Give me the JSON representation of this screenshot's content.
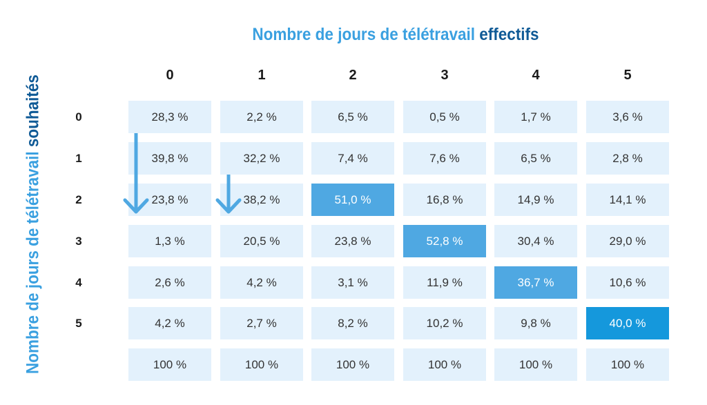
{
  "title_top": {
    "part1": "Nombre de jours de télétravail",
    "part2": "effectifs"
  },
  "title_side": {
    "part1": "Nombre de jours de télétravail",
    "part2": "souhaités"
  },
  "colors": {
    "light_blue": "#3aa0e0",
    "dark_blue": "#0f5a96",
    "cell_bg": "#e3f1fc",
    "highlight": "#4fa8e2",
    "highlight_strong": "#1598dc",
    "arrow": "#4fa8e2"
  },
  "chart_data": {
    "type": "table",
    "xlabel": "Nombre de jours de télétravail effectifs",
    "ylabel": "Nombre de jours de télétravail souhaités",
    "columns": [
      "0",
      "1",
      "2",
      "3",
      "4",
      "5"
    ],
    "rows": [
      {
        "label": "0",
        "values": [
          "28,3 %",
          "2,2 %",
          "6,5 %",
          "0,5 %",
          "1,7 %",
          "3,6 %"
        ]
      },
      {
        "label": "1",
        "values": [
          "39,8 %",
          "32,2 %",
          "7,4 %",
          "7,6 %",
          "6,5 %",
          "2,8 %"
        ]
      },
      {
        "label": "2",
        "values": [
          "23,8 %",
          "38,2 %",
          "51,0 %",
          "16,8 %",
          "14,9 %",
          "14,1 %"
        ]
      },
      {
        "label": "3",
        "values": [
          "1,3 %",
          "20,5 %",
          "23,8 %",
          "52,8 %",
          "30,4 %",
          "29,0 %"
        ]
      },
      {
        "label": "4",
        "values": [
          "2,6 %",
          "4,2 %",
          "3,1 %",
          "11,9 %",
          "36,7 %",
          "10,6 %"
        ]
      },
      {
        "label": "5",
        "values": [
          "4,2 %",
          "2,7 %",
          "8,2 %",
          "10,2 %",
          "9,8 %",
          "40,0 %"
        ]
      },
      {
        "label": "",
        "values": [
          "100 %",
          "100 %",
          "100 %",
          "100 %",
          "100 %",
          "100 %"
        ]
      }
    ],
    "highlighted_cells": [
      {
        "row": 2,
        "col": 2,
        "style": "highlight"
      },
      {
        "row": 3,
        "col": 3,
        "style": "highlight"
      },
      {
        "row": 4,
        "col": 4,
        "style": "highlight"
      },
      {
        "row": 5,
        "col": 5,
        "style": "highlight_strong"
      }
    ],
    "arrows": [
      {
        "column": 0,
        "direction": "down",
        "from_row": 0,
        "to_row": 2
      },
      {
        "column": 1,
        "direction": "down",
        "from_row": 1,
        "to_row": 2
      }
    ]
  }
}
